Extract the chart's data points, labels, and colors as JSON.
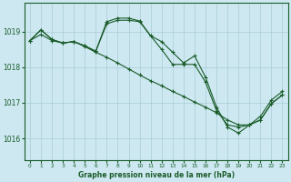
{
  "background_color": "#cde8f0",
  "grid_color": "#a8ccd8",
  "line_color": "#1a5c2a",
  "title": "Graphe pression niveau de la mer (hPa)",
  "ylabel_ticks": [
    1016,
    1017,
    1018,
    1019
  ],
  "xlim": [
    -0.5,
    23.5
  ],
  "ylim": [
    1015.4,
    1019.8
  ],
  "series1_x": [
    0,
    1,
    2,
    3,
    4,
    5,
    6,
    7,
    8,
    9,
    10,
    11,
    12,
    13,
    14,
    15,
    16,
    17,
    18,
    19,
    20,
    21,
    22,
    23
  ],
  "series1_y": [
    1018.75,
    1018.92,
    1018.75,
    1018.68,
    1018.72,
    1018.58,
    1018.42,
    1018.28,
    1018.12,
    1017.95,
    1017.78,
    1017.62,
    1017.48,
    1017.32,
    1017.18,
    1017.02,
    1016.88,
    1016.72,
    1016.52,
    1016.38,
    1016.38,
    1016.52,
    1016.98,
    1017.22
  ],
  "series2_x": [
    0,
    1,
    2,
    3,
    4,
    5,
    6,
    7,
    8,
    9,
    10,
    11,
    12,
    13,
    14,
    15,
    16,
    17,
    18,
    19,
    20,
    21,
    22,
    23
  ],
  "series2_y": [
    1018.75,
    1019.05,
    1018.78,
    1018.68,
    1018.72,
    1018.6,
    1018.45,
    1019.28,
    1019.38,
    1019.38,
    1019.3,
    1018.88,
    1018.5,
    1018.08,
    1018.08,
    1018.08,
    1017.58,
    1016.78,
    1016.38,
    1016.32,
    1016.38,
    1016.52,
    1016.98,
    1017.22
  ],
  "series3_x": [
    0,
    1,
    2,
    3,
    4,
    5,
    6,
    7,
    8,
    9,
    10,
    11,
    12,
    13,
    14,
    15,
    16,
    17,
    18,
    19,
    20,
    21,
    22,
    23
  ],
  "series3_y": [
    1018.75,
    1019.05,
    1018.78,
    1018.68,
    1018.72,
    1018.6,
    1018.45,
    1019.22,
    1019.32,
    1019.32,
    1019.28,
    1018.88,
    1018.72,
    1018.42,
    1018.12,
    1018.32,
    1017.72,
    1016.88,
    1016.32,
    1016.15,
    1016.38,
    1016.62,
    1017.08,
    1017.32
  ]
}
